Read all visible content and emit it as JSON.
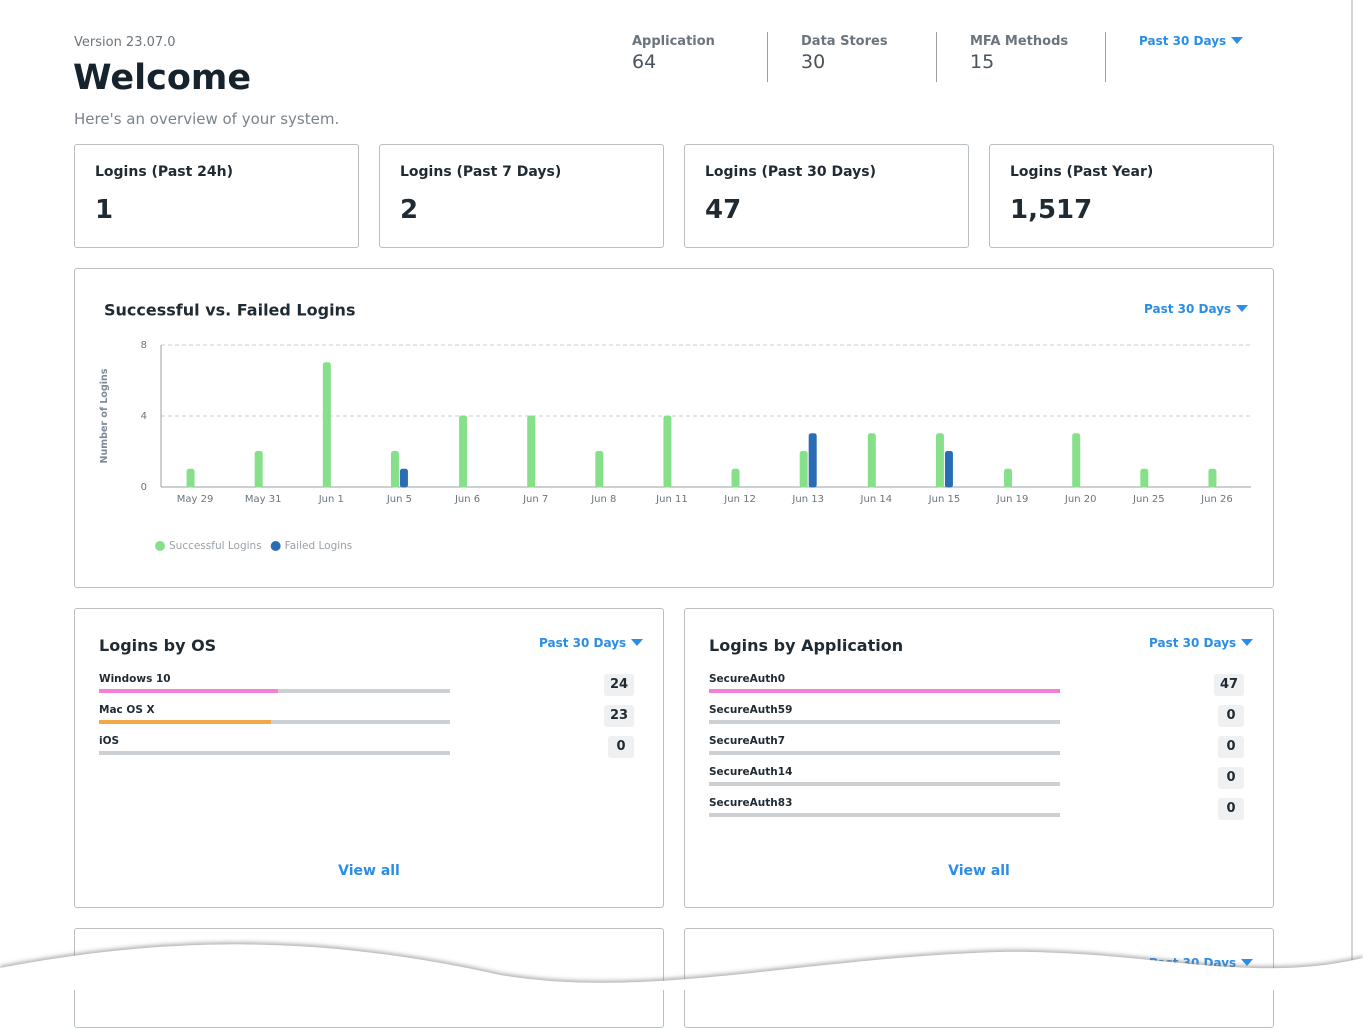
{
  "header": {
    "version": "Version 23.07.0",
    "title": "Welcome",
    "subtitle": "Here's an overview of your system."
  },
  "stats": [
    {
      "label": "Application",
      "value": "64"
    },
    {
      "label": "Data Stores",
      "value": "30"
    },
    {
      "label": "MFA Methods",
      "value": "15"
    }
  ],
  "stats_period": "Past 30 Days",
  "cards": [
    {
      "label": "Logins (Past 24h)",
      "value": "1"
    },
    {
      "label": "Logins (Past 7 Days)",
      "value": "2"
    },
    {
      "label": "Logins (Past 30 Days)",
      "value": "47"
    },
    {
      "label": "Logins (Past Year)",
      "value": "1,517"
    }
  ],
  "chart_data": {
    "type": "bar",
    "title": "Successful vs. Failed Logins",
    "period": "Past 30 Days",
    "y_label": "Number of Logins",
    "categories": [
      "May 29",
      "May 31",
      "Jun 1",
      "Jun 5",
      "Jun 6",
      "Jun 7",
      "Jun 8",
      "Jun 11",
      "Jun 12",
      "Jun 13",
      "Jun 14",
      "Jun 15",
      "Jun 19",
      "Jun 20",
      "Jun 25",
      "Jun 26"
    ],
    "series": [
      {
        "name": "Successful Logins",
        "color": "#86e08a",
        "values": [
          1,
          2,
          7,
          2,
          4,
          4,
          2,
          4,
          1,
          2,
          3,
          3,
          1,
          3,
          1,
          1
        ]
      },
      {
        "name": "Failed Logins",
        "color": "#2a6db5",
        "values": [
          0,
          0,
          0,
          1,
          0,
          0,
          0,
          0,
          0,
          3,
          0,
          2,
          0,
          0,
          0,
          0
        ]
      }
    ],
    "ylim": [
      0,
      8
    ],
    "yticks": [
      0,
      4,
      8
    ],
    "grid": true,
    "legend": "bottom-left"
  },
  "os": {
    "title": "Logins by OS",
    "period": "Past 30 Days",
    "link": "View all",
    "items": [
      {
        "name": "Windows 10",
        "value": 24,
        "color": "#f47fd4"
      },
      {
        "name": "Mac OS X",
        "value": 23,
        "color": "#f5a54a"
      },
      {
        "name": "iOS",
        "value": 0
      }
    ]
  },
  "apps": {
    "title": "Logins by Application",
    "period": "Past 30 Days",
    "link": "View all",
    "items": [
      {
        "name": "SecureAuth0",
        "value": 47,
        "color": "#f47fd4"
      },
      {
        "name": "SecureAuth59",
        "value": 0
      },
      {
        "name": "SecureAuth7",
        "value": 0
      },
      {
        "name": "SecureAuth14",
        "value": 0
      },
      {
        "name": "SecureAuth83",
        "value": 0
      }
    ]
  },
  "lower_panel": {
    "period": "Past 30 Days"
  }
}
